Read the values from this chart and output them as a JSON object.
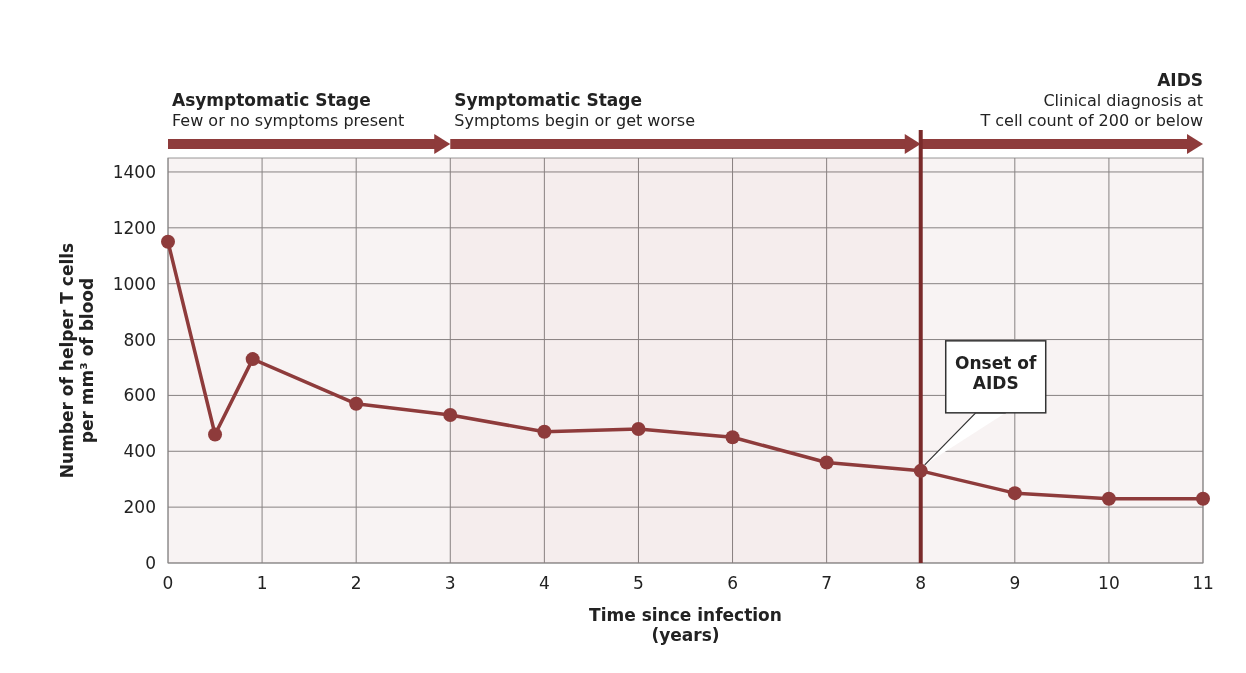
{
  "chart_data": {
    "type": "line",
    "xlabel": "Time since infection\n(years)",
    "ylabel": "Number of helper T cells\nper mm³ of blood",
    "x": [
      0,
      0.5,
      0.9,
      2,
      3,
      4,
      5,
      6,
      7,
      8,
      9,
      10,
      11
    ],
    "series": [
      {
        "color": "#8e3b3b",
        "values": [
          1150,
          460,
          730,
          570,
          530,
          470,
          480,
          450,
          360,
          330,
          250,
          230,
          230
        ]
      }
    ],
    "xlim": [
      0,
      11
    ],
    "ylim": [
      0,
      1450
    ],
    "xticks": [
      0,
      1,
      2,
      3,
      4,
      5,
      6,
      7,
      8,
      9,
      10,
      11
    ],
    "yticks": [
      0,
      200,
      400,
      600,
      800,
      1000,
      1200,
      1400
    ],
    "grid": true,
    "marker": "circle",
    "line_style": "solid",
    "ref_lines": [
      {
        "axis": "x",
        "value": 8,
        "color": "#7a2a2a"
      }
    ],
    "bands": [
      {
        "axis": "x",
        "from": 0,
        "to": 3,
        "label": "Asymptomatic Stage\nFew or no symptoms present",
        "color": "#8e3b3b"
      },
      {
        "axis": "x",
        "from": 3,
        "to": 8,
        "label": "Symptomatic Stage\nSymptoms begin or get worse",
        "color": "#8e3b3b"
      },
      {
        "axis": "x",
        "from": 8,
        "to": 11,
        "label": "AIDS\nClinical diagnosis at\nT cell count of 200 or below",
        "color": "#8e3b3b"
      }
    ],
    "annotations": [
      {
        "text": "Onset of\nAIDS",
        "x": 8,
        "y": 330
      }
    ]
  }
}
